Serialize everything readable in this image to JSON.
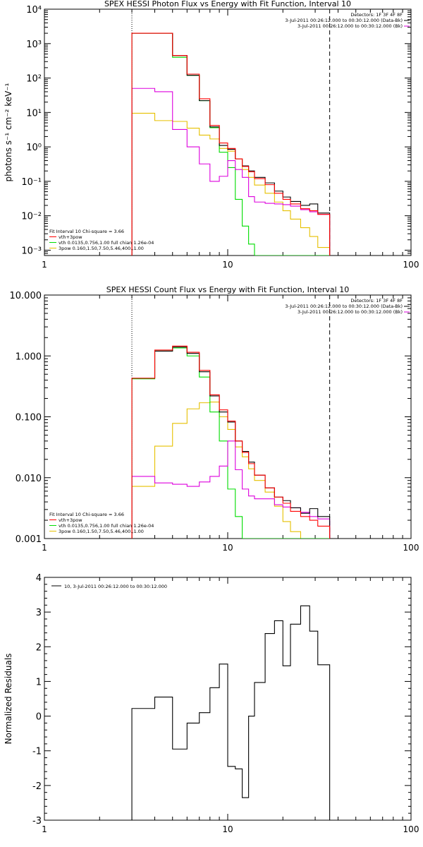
{
  "colors": {
    "black": "#000000",
    "red": "#ff0000",
    "green": "#00dd00",
    "magenta": "#dd00dd",
    "yellow": "#e6c000"
  },
  "chart_data": [
    {
      "type": "line",
      "step": true,
      "title": "SPEX HESSI Photon Flux vs Energy with Fit Function, Interval 10",
      "xlabel": "",
      "ylabel": "photons s⁻¹ cm⁻² keV⁻¹",
      "xscale": "log",
      "yscale": "log",
      "xlim": [
        1,
        100
      ],
      "ylim": [
        0.0007,
        10000
      ],
      "x_ticks": [
        1,
        10,
        100
      ],
      "x_tick_labels": [
        "1",
        "10",
        "100"
      ],
      "y_ticks": [
        0.001,
        0.01,
        0.1,
        1,
        10,
        100,
        1000,
        10000
      ],
      "y_tick_labels": [
        "10⁻³",
        "10⁻²",
        "10⁻¹",
        "10⁰",
        "10¹",
        "10²",
        "10³",
        "10⁴"
      ],
      "vlines": [
        {
          "x": 3,
          "style": "dotted"
        },
        {
          "x": 36,
          "style": "dashed"
        }
      ],
      "legend_top": [
        "Detectors: 1F 3F 4F 8F",
        "3-Jul-2011 00:26:12.000 to 00:30:12.000 (Data-Bk)",
        "3-Jul-2011 00:26:12.000 to 00:30:12.000 (Bk)"
      ],
      "legend_bottom_header": "Fit Interval 10   Chi-square = 3.66",
      "legend_bottom": [
        "vth+3pow",
        "vth 0.0135,0.756,1.00  full chian 1.26e-04",
        "3pow 0.160,1.50,7.50,5.46,400.,1.00"
      ],
      "edges": [
        3.0,
        4.0,
        5.0,
        6.0,
        7.0,
        8.0,
        9.0,
        10.0,
        11.0,
        12.0,
        13.0,
        14.0,
        16.0,
        18.0,
        20.0,
        22.0,
        25.0,
        28.0,
        31.0,
        36.0
      ],
      "series": [
        {
          "key": "data",
          "color": "black",
          "values": [
            2000,
            2000,
            450,
            120,
            22,
            3.8,
            1.1,
            0.85,
            0.45,
            0.28,
            0.2,
            0.13,
            0.09,
            0.052,
            0.035,
            0.026,
            0.02,
            0.022,
            0.012
          ]
        },
        {
          "key": "fit",
          "color": "red",
          "values": [
            2000,
            2000,
            450,
            130,
            25,
            4.2,
            1.3,
            0.9,
            0.45,
            0.27,
            0.19,
            0.12,
            0.08,
            0.045,
            0.03,
            0.022,
            0.016,
            0.014,
            0.011
          ]
        },
        {
          "key": "vth",
          "color": "green",
          "values": [
            2000,
            2000,
            400,
            120,
            22,
            3.6,
            0.7,
            0.25,
            0.03,
            0.005,
            0.0015,
            0.0007,
            0.0007,
            0.0007,
            0.0007,
            0.0007,
            0.0007,
            0.0007,
            0.0007
          ]
        },
        {
          "key": "pow",
          "color": "yellow",
          "values": [
            9.5,
            5.8,
            5.5,
            3.5,
            2.2,
            1.7,
            0.9,
            0.75,
            0.45,
            0.22,
            0.13,
            0.078,
            0.045,
            0.025,
            0.014,
            0.008,
            0.0045,
            0.0025,
            0.0012
          ]
        },
        {
          "key": "bk",
          "color": "magenta",
          "values": [
            50,
            40,
            3.2,
            1.0,
            0.32,
            0.1,
            0.14,
            0.4,
            0.22,
            0.13,
            0.036,
            0.025,
            0.023,
            0.022,
            0.021,
            0.019,
            0.015,
            0.013,
            0.011
          ]
        }
      ]
    },
    {
      "type": "line",
      "step": true,
      "title": "SPEX HESSI Count Flux vs Energy with Fit Function, Interval 10",
      "xlabel": "",
      "ylabel": "",
      "xscale": "log",
      "yscale": "log",
      "xlim": [
        1,
        100
      ],
      "ylim": [
        0.001,
        10
      ],
      "x_ticks": [
        1,
        10,
        100
      ],
      "x_tick_labels": [
        "1",
        "10",
        "100"
      ],
      "y_ticks": [
        0.001,
        0.01,
        0.1,
        1,
        10
      ],
      "y_tick_labels": [
        "0.001",
        "0.010",
        "0.100",
        "1.000",
        "10.000"
      ],
      "vlines": [
        {
          "x": 3,
          "style": "dotted"
        },
        {
          "x": 36,
          "style": "dashed"
        }
      ],
      "legend_top": [
        "Detectors: 1F 3F 4F 8F",
        "3-Jul-2011 00:26:12.000 to 00:30:12.000 (Data-Bk)",
        "3-Jul-2011 00:26:12.000 to 00:30:12.000 (Bk)"
      ],
      "legend_bottom_header": "Fit Interval 10   Chi-square = 3.66",
      "legend_bottom": [
        "vth+3pow",
        "vth 0.0135,0.756,1.00  full chian 1.26e-04",
        "3pow 0.160,1.50,7.50,5.46,400.,1.00"
      ],
      "edges": [
        3.0,
        4.0,
        5.0,
        6.0,
        7.0,
        8.0,
        9.0,
        10.0,
        11.0,
        12.0,
        13.0,
        14.0,
        16.0,
        18.0,
        20.0,
        22.0,
        25.0,
        28.0,
        31.0,
        36.0
      ],
      "series": [
        {
          "key": "data",
          "color": "black",
          "values": [
            0.43,
            1.2,
            1.4,
            1.1,
            0.55,
            0.22,
            0.12,
            0.082,
            0.04,
            0.027,
            0.018,
            0.011,
            0.0068,
            0.0048,
            0.0042,
            0.0032,
            0.0026,
            0.0031,
            0.0023
          ]
        },
        {
          "key": "fit",
          "color": "red",
          "values": [
            0.43,
            1.25,
            1.45,
            1.15,
            0.58,
            0.23,
            0.13,
            0.085,
            0.04,
            0.026,
            0.017,
            0.011,
            0.0068,
            0.0048,
            0.0038,
            0.0028,
            0.0023,
            0.002,
            0.0016
          ]
        },
        {
          "key": "vth",
          "color": "green",
          "values": [
            0.42,
            1.2,
            1.35,
            1.0,
            0.45,
            0.12,
            0.04,
            0.0065,
            0.0023,
            0.001,
            0.001,
            0.001,
            0.001,
            0.001,
            0.001,
            0.001,
            0.001,
            0.001,
            0.001
          ]
        },
        {
          "key": "pow",
          "color": "yellow",
          "values": [
            0.0072,
            0.033,
            0.078,
            0.135,
            0.17,
            0.175,
            0.1,
            0.062,
            0.032,
            0.022,
            0.014,
            0.009,
            0.0058,
            0.0034,
            0.0019,
            0.0013,
            0.001,
            0.001,
            0.001
          ]
        },
        {
          "key": "bk",
          "color": "magenta",
          "values": [
            0.0105,
            0.0082,
            0.0078,
            0.0072,
            0.0085,
            0.0105,
            0.0155,
            0.04,
            0.0135,
            0.0065,
            0.005,
            0.0045,
            0.0045,
            0.0036,
            0.0033,
            0.0032,
            0.0027,
            0.0023,
            0.0021
          ]
        }
      ]
    },
    {
      "type": "line",
      "step": true,
      "title": "",
      "xlabel": "",
      "ylabel": "Normalized Residuals",
      "xscale": "log",
      "yscale": "linear",
      "xlim": [
        1,
        100
      ],
      "ylim": [
        -3,
        4
      ],
      "x_ticks": [
        1,
        10,
        100
      ],
      "x_tick_labels": [
        "1",
        "10",
        "100"
      ],
      "y_ticks": [
        -3,
        -2,
        -1,
        0,
        1,
        2,
        3,
        4
      ],
      "y_tick_labels": [
        "-3",
        "-2",
        "-1",
        "0",
        "1",
        "2",
        "3",
        "4"
      ],
      "legend_top": [
        "10,  3-Jul-2011 00:26:12.000 to 00:30:12.000"
      ],
      "edges": [
        3.0,
        4.0,
        5.0,
        6.0,
        7.0,
        8.0,
        9.0,
        10.0,
        11.0,
        12.0,
        13.0,
        14.0,
        16.0,
        18.0,
        20.0,
        22.0,
        25.0,
        28.0,
        31.0,
        36.0
      ],
      "series": [
        {
          "key": "residuals",
          "color": "black",
          "values": [
            0.22,
            0.55,
            -0.95,
            -0.2,
            0.1,
            0.82,
            1.5,
            -1.45,
            -1.52,
            -2.35,
            -0.0,
            0.97,
            2.38,
            2.75,
            1.45,
            2.65,
            3.18,
            2.45,
            1.48
          ]
        }
      ]
    }
  ]
}
